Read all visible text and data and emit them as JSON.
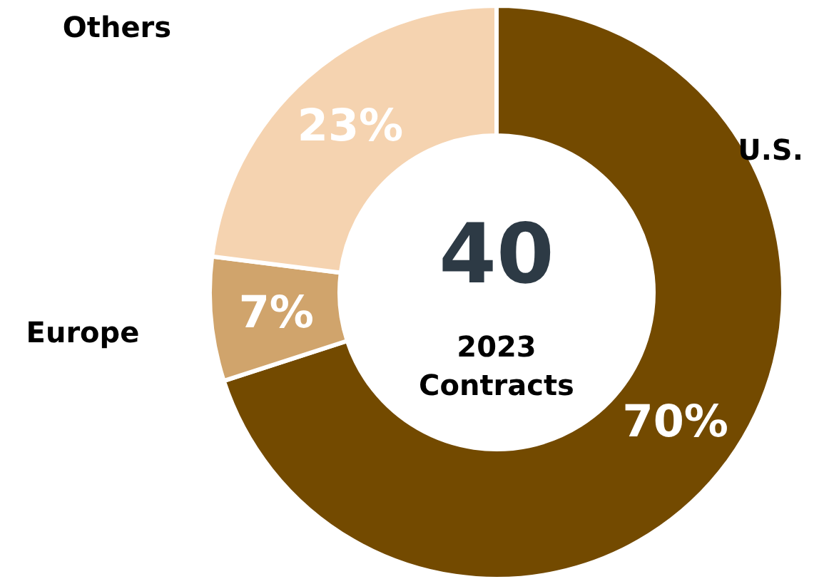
{
  "chart_data": {
    "type": "donut",
    "categories": [
      "U.S.",
      "Europe",
      "Others"
    ],
    "values": [
      70,
      7,
      23
    ],
    "colors": [
      "#734a00",
      "#d0a46c",
      "#f5d3b0"
    ],
    "value_labels": [
      "70%",
      "7%",
      "23%"
    ],
    "annotations": [
      "40",
      "2023",
      "Contracts"
    ]
  }
}
